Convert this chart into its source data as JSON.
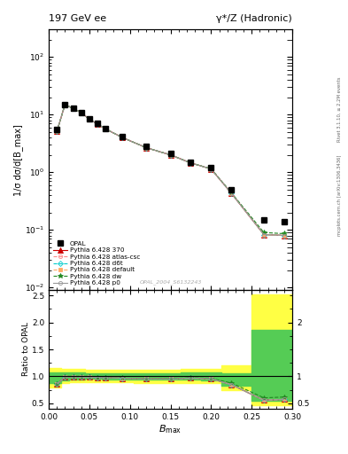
{
  "title_left": "197 GeV ee",
  "title_right": "γ*/Z (Hadronic)",
  "ylabel_main": "1/σ dσ/d[B_max",
  "ylabel_ratio": "Ratio to OPAL",
  "right_label_top": "Rivet 3.1.10, ≥ 2.2M events",
  "right_label_bottom": "mcplots.cern.ch [arXiv:1306.3436]",
  "watermark": "OPAL_2004_S6132243",
  "x_centers": [
    0.01,
    0.02,
    0.03,
    0.04,
    0.05,
    0.06,
    0.07,
    0.09,
    0.12,
    0.15,
    0.175,
    0.2,
    0.225,
    0.265,
    0.29
  ],
  "opal_y": [
    5.5,
    15.0,
    13.0,
    11.0,
    8.5,
    7.0,
    5.8,
    4.2,
    2.8,
    2.1,
    1.5,
    1.2,
    0.5,
    0.15,
    0.14
  ],
  "py370_y": [
    5.1,
    14.85,
    12.85,
    10.85,
    8.35,
    6.85,
    5.65,
    4.05,
    2.67,
    2.0,
    1.45,
    1.14,
    0.43,
    0.083,
    0.08
  ],
  "py_atlas_y": [
    5.1,
    14.85,
    12.85,
    10.85,
    8.35,
    6.85,
    5.65,
    4.05,
    2.67,
    2.0,
    1.45,
    1.14,
    0.43,
    0.083,
    0.08
  ],
  "py_d6t_y": [
    5.1,
    14.85,
    12.85,
    10.85,
    8.35,
    6.85,
    5.65,
    4.05,
    2.67,
    2.0,
    1.45,
    1.14,
    0.43,
    0.083,
    0.08
  ],
  "py_def_y": [
    5.1,
    14.85,
    12.85,
    10.85,
    8.35,
    6.85,
    5.65,
    4.05,
    2.67,
    2.0,
    1.45,
    1.14,
    0.43,
    0.083,
    0.08
  ],
  "py_dw_y": [
    5.1,
    14.85,
    12.85,
    10.85,
    8.35,
    6.85,
    5.65,
    4.05,
    2.67,
    2.0,
    1.45,
    1.15,
    0.44,
    0.09,
    0.086
  ],
  "py_p0_y": [
    5.1,
    14.85,
    12.85,
    10.85,
    8.35,
    6.85,
    5.65,
    4.05,
    2.67,
    2.0,
    1.45,
    1.14,
    0.43,
    0.083,
    0.08
  ],
  "ratio_370": [
    0.855,
    0.985,
    0.988,
    0.985,
    0.982,
    0.978,
    0.974,
    0.964,
    0.953,
    0.952,
    0.967,
    0.955,
    0.845,
    0.555,
    0.572
  ],
  "ratio_atlas": [
    0.855,
    0.985,
    0.988,
    0.985,
    0.982,
    0.978,
    0.974,
    0.964,
    0.953,
    0.952,
    0.967,
    0.955,
    0.845,
    0.555,
    0.572
  ],
  "ratio_d6t": [
    0.855,
    0.985,
    0.988,
    0.985,
    0.982,
    0.978,
    0.974,
    0.964,
    0.953,
    0.952,
    0.967,
    0.955,
    0.845,
    0.555,
    0.572
  ],
  "ratio_def": [
    0.855,
    0.985,
    0.988,
    0.985,
    0.982,
    0.978,
    0.974,
    0.964,
    0.953,
    0.952,
    0.967,
    0.955,
    0.845,
    0.555,
    0.572
  ],
  "ratio_dw": [
    0.855,
    0.985,
    0.988,
    0.985,
    0.982,
    0.978,
    0.974,
    0.965,
    0.955,
    0.958,
    0.972,
    0.962,
    0.875,
    0.6,
    0.615
  ],
  "ratio_p0": [
    0.855,
    0.985,
    0.988,
    0.985,
    0.982,
    0.978,
    0.974,
    0.964,
    0.953,
    0.952,
    0.967,
    0.955,
    0.845,
    0.555,
    0.572
  ],
  "band_x_green": [
    0.0,
    0.015,
    0.025,
    0.035,
    0.045,
    0.055,
    0.065,
    0.08,
    0.105,
    0.135,
    0.163,
    0.188,
    0.213,
    0.25,
    0.275,
    0.3
  ],
  "green_low": [
    0.88,
    0.93,
    0.94,
    0.945,
    0.95,
    0.95,
    0.947,
    0.942,
    0.937,
    0.937,
    0.937,
    0.928,
    0.82,
    0.55,
    0.55,
    0.55
  ],
  "green_high": [
    1.07,
    1.075,
    1.068,
    1.065,
    1.062,
    1.058,
    1.055,
    1.053,
    1.055,
    1.06,
    1.065,
    1.068,
    1.05,
    1.87,
    1.87,
    1.87
  ],
  "band_x_yellow": [
    0.0,
    0.015,
    0.025,
    0.035,
    0.045,
    0.055,
    0.065,
    0.08,
    0.105,
    0.135,
    0.163,
    0.188,
    0.213,
    0.25,
    0.275,
    0.3
  ],
  "yellow_low": [
    0.8,
    0.875,
    0.885,
    0.89,
    0.896,
    0.898,
    0.895,
    0.888,
    0.882,
    0.88,
    0.88,
    0.87,
    0.75,
    0.46,
    0.46,
    0.46
  ],
  "yellow_high": [
    1.15,
    1.14,
    1.135,
    1.132,
    1.128,
    1.124,
    1.12,
    1.118,
    1.12,
    1.125,
    1.13,
    1.135,
    1.2,
    2.52,
    2.52,
    2.52
  ],
  "legend_entries": [
    "OPAL",
    "Pythia 6.428 370",
    "Pythia 6.428 atlas-csc",
    "Pythia 6.428 d6t",
    "Pythia 6.428 default",
    "Pythia 6.428 dw",
    "Pythia 6.428 p0"
  ],
  "colors": {
    "opal": "#000000",
    "py370": "#cc0000",
    "py_atlas": "#ff8888",
    "py_d6t": "#00cccc",
    "py_def": "#ffaa66",
    "py_dw": "#228822",
    "py_p0": "#999999"
  },
  "ylim_main": [
    0.009,
    300
  ],
  "ylim_ratio": [
    0.4,
    2.6
  ],
  "xlim": [
    0.0,
    0.3
  ]
}
